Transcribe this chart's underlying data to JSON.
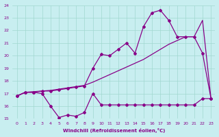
{
  "xlabel": "Windchill (Refroidissement éolien,°C)",
  "bg_color": "#c8eef0",
  "grid_color": "#a0d8d0",
  "line_color": "#880088",
  "xlim": [
    -0.5,
    23.5
  ],
  "ylim": [
    15,
    24
  ],
  "yticks": [
    15,
    16,
    17,
    18,
    19,
    20,
    21,
    22,
    23,
    24
  ],
  "xticks": [
    0,
    1,
    2,
    3,
    4,
    5,
    6,
    7,
    8,
    9,
    10,
    11,
    12,
    13,
    14,
    15,
    16,
    17,
    18,
    19,
    20,
    21,
    22,
    23
  ],
  "line1_x": [
    0,
    1,
    2,
    3,
    4,
    5,
    6,
    7,
    8,
    9,
    10,
    11,
    12,
    13,
    14,
    15,
    16,
    17,
    18,
    19,
    20,
    21,
    22,
    23
  ],
  "line1_y": [
    16.8,
    17.1,
    17.1,
    17.0,
    16.0,
    15.1,
    15.3,
    15.2,
    15.5,
    17.0,
    16.1,
    16.1,
    16.1,
    16.1,
    16.1,
    16.1,
    16.1,
    16.1,
    16.1,
    16.1,
    16.1,
    16.1,
    16.6,
    16.6
  ],
  "line2_x": [
    0,
    1,
    2,
    3,
    4,
    5,
    6,
    7,
    8,
    9,
    10,
    11,
    12,
    13,
    14,
    15,
    16,
    17,
    18,
    19,
    20,
    21,
    22,
    23
  ],
  "line2_y": [
    16.8,
    17.1,
    17.1,
    17.2,
    17.2,
    17.3,
    17.4,
    17.5,
    17.6,
    19.0,
    20.1,
    20.0,
    20.5,
    21.0,
    20.2,
    22.3,
    23.4,
    23.6,
    22.8,
    21.5,
    21.5,
    21.5,
    20.2,
    16.6
  ],
  "line3_x": [
    0,
    1,
    2,
    3,
    4,
    5,
    6,
    7,
    8,
    9,
    10,
    11,
    12,
    13,
    14,
    15,
    16,
    17,
    18,
    19,
    20,
    21,
    22,
    23
  ],
  "line3_y": [
    16.8,
    17.1,
    17.15,
    17.2,
    17.25,
    17.35,
    17.45,
    17.55,
    17.65,
    17.9,
    18.2,
    18.5,
    18.8,
    19.1,
    19.4,
    19.7,
    20.1,
    20.5,
    20.9,
    21.2,
    21.5,
    21.5,
    22.8,
    16.6
  ]
}
